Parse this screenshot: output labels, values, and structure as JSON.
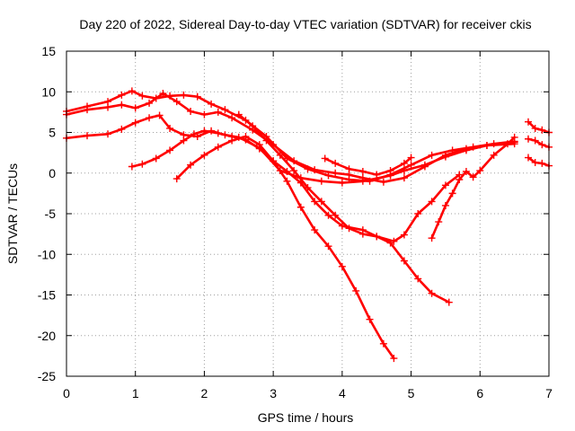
{
  "chart_data": {
    "type": "scatter",
    "title": "Day 220 of 2022, Sidereal Day-to-day VTEC variation (SDTVAR) for receiver ckis",
    "xlabel": "GPS time / hours",
    "ylabel": "SDTVAR / TECUs",
    "xlim": [
      0,
      7
    ],
    "ylim": [
      -25,
      15
    ],
    "xticks": [
      0,
      1,
      2,
      3,
      4,
      5,
      6,
      7
    ],
    "yticks": [
      -25,
      -20,
      -15,
      -10,
      -5,
      0,
      5,
      10,
      15
    ],
    "grid": true,
    "color": "#ff0000",
    "marker": "+",
    "series": [
      {
        "name": "track-a",
        "x": [
          0.0,
          0.3,
          0.6,
          0.8,
          0.95,
          1.1,
          1.3,
          1.5,
          1.7,
          1.9,
          2.1,
          2.3,
          2.6,
          2.9,
          3.2,
          3.5,
          3.8,
          4.1,
          4.4,
          4.7,
          5.0,
          5.3,
          5.6,
          5.9,
          6.2,
          6.5
        ],
        "y": [
          7.6,
          8.2,
          8.8,
          9.6,
          10.1,
          9.5,
          9.2,
          9.5,
          9.6,
          9.4,
          8.5,
          7.8,
          6.5,
          4.5,
          1.8,
          0.5,
          -0.3,
          -0.8,
          -1.0,
          -0.2,
          1.0,
          2.2,
          2.8,
          3.2,
          3.6,
          3.9
        ]
      },
      {
        "name": "track-b",
        "x": [
          0.0,
          0.3,
          0.6,
          0.8,
          1.0,
          1.2,
          1.4,
          1.6,
          1.8,
          2.0,
          2.2,
          2.4,
          2.7,
          3.0,
          3.3,
          3.6,
          3.9,
          4.1,
          4.3,
          4.6,
          4.9,
          5.2,
          5.5,
          5.8,
          6.1,
          6.5
        ],
        "y": [
          7.2,
          7.8,
          8.1,
          8.4,
          8.0,
          8.6,
          9.8,
          8.8,
          7.6,
          7.2,
          7.5,
          6.8,
          5.3,
          3.5,
          1.5,
          0.4,
          0.0,
          -0.2,
          -0.6,
          -1.1,
          -0.6,
          0.8,
          2.2,
          3.0,
          3.4,
          3.6
        ]
      },
      {
        "name": "track-c",
        "x": [
          0.0,
          0.3,
          0.6,
          0.8,
          1.0,
          1.2,
          1.35,
          1.5,
          1.7,
          1.9,
          2.1,
          2.3,
          2.5,
          2.8,
          3.1,
          3.4,
          3.7,
          4.0,
          4.3,
          4.7,
          4.9,
          5.2,
          5.5,
          5.8,
          6.1,
          6.5
        ],
        "y": [
          4.3,
          4.6,
          4.8,
          5.4,
          6.2,
          6.8,
          7.1,
          5.5,
          4.7,
          4.5,
          5.2,
          4.7,
          4.4,
          3.1,
          0.3,
          -0.6,
          -1.0,
          -1.2,
          -1.0,
          -0.3,
          0.3,
          1.0,
          2.0,
          2.8,
          3.4,
          3.8
        ]
      },
      {
        "name": "track-d",
        "x": [
          0.95,
          1.1,
          1.3,
          1.5,
          1.7,
          1.85,
          2.0,
          2.2,
          2.4,
          2.6,
          2.8,
          3.0,
          3.2,
          3.4,
          3.6,
          3.8,
          4.0,
          4.3,
          4.5,
          4.75,
          4.9,
          5.1,
          5.3,
          5.5,
          5.7
        ],
        "y": [
          0.8,
          1.1,
          1.8,
          2.8,
          4.0,
          4.8,
          5.2,
          4.9,
          4.5,
          4.1,
          3.0,
          1.5,
          0.2,
          -1.2,
          -3.5,
          -5.2,
          -6.5,
          -7.0,
          -7.8,
          -8.4,
          -7.6,
          -5.0,
          -3.5,
          -1.5,
          -0.2
        ]
      },
      {
        "name": "track-e",
        "x": [
          1.6,
          1.8,
          2.0,
          2.2,
          2.4,
          2.6,
          2.8,
          3.0,
          3.2,
          3.4,
          3.6,
          3.8,
          4.0,
          4.2,
          4.4,
          4.6,
          4.75
        ],
        "y": [
          -0.7,
          1.0,
          2.2,
          3.2,
          4.0,
          4.5,
          3.5,
          1.5,
          -1.0,
          -4.2,
          -7.0,
          -9.0,
          -11.5,
          -14.5,
          -18.0,
          -21.0,
          -22.8
        ]
      },
      {
        "name": "track-f",
        "x": [
          2.5,
          2.7,
          2.9,
          3.1,
          3.3,
          3.5,
          3.7,
          3.9,
          4.1,
          4.3,
          4.5,
          4.7,
          4.9,
          5.1,
          5.3,
          5.55
        ],
        "y": [
          7.2,
          5.8,
          4.0,
          2.2,
          0.3,
          -1.8,
          -3.5,
          -5.2,
          -6.8,
          -7.5,
          -7.8,
          -8.6,
          -10.8,
          -13.0,
          -14.8,
          -15.9
        ]
      },
      {
        "name": "track-g",
        "x": [
          3.75,
          3.9,
          4.1,
          4.3,
          4.5,
          4.7,
          4.9,
          5.0
        ],
        "y": [
          1.8,
          1.2,
          0.5,
          0.2,
          -0.2,
          0.3,
          1.2,
          1.9
        ]
      },
      {
        "name": "track-h",
        "x": [
          5.3,
          5.4,
          5.5,
          5.6,
          5.7,
          5.8,
          5.9,
          6.0,
          6.2,
          6.4,
          6.5
        ],
        "y": [
          -8.0,
          -6.0,
          -4.0,
          -2.5,
          -0.8,
          0.2,
          -0.5,
          0.3,
          2.2,
          3.6,
          4.4
        ]
      },
      {
        "name": "track-i",
        "x": [
          6.7,
          6.8,
          6.9,
          7.0
        ],
        "y": [
          6.3,
          5.5,
          5.3,
          5.0
        ]
      },
      {
        "name": "track-j",
        "x": [
          6.7,
          6.8,
          6.9,
          7.0
        ],
        "y": [
          4.2,
          4.0,
          3.5,
          3.2
        ]
      },
      {
        "name": "track-k",
        "x": [
          6.7,
          6.8,
          6.9,
          7.0
        ],
        "y": [
          1.9,
          1.3,
          1.2,
          0.9
        ]
      }
    ]
  }
}
